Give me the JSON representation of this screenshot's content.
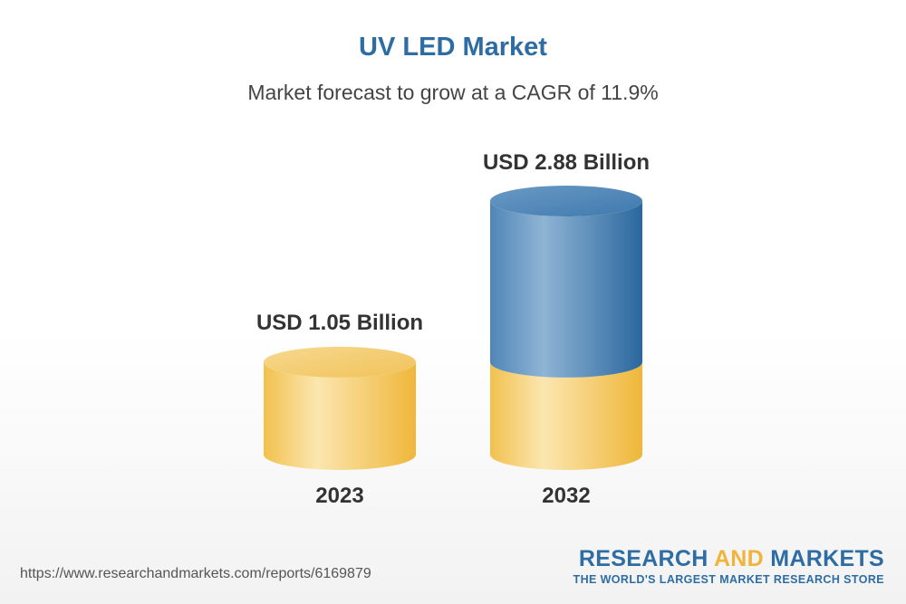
{
  "header": {
    "title": "UV LED Market",
    "subtitle": "Market forecast to grow at a CAGR of 11.9%"
  },
  "chart_data": {
    "type": "bar",
    "title": "UV LED Market",
    "subtitle": "Market forecast to grow at a CAGR of 11.9%",
    "categories": [
      "2023",
      "2032"
    ],
    "values": [
      1.05,
      2.88
    ],
    "data_labels": [
      "USD 1.05 Billion",
      "USD 2.88 Billion"
    ],
    "unit": "USD Billion",
    "xlabel": "",
    "ylabel": "",
    "ylim": [
      0,
      2.88
    ],
    "grid": false,
    "legend": "none",
    "colors": {
      "base": "#f2c14e",
      "base_light": "#fbe3a8",
      "growth": "#2f6ea5",
      "growth_light": "#8db2d3"
    }
  },
  "footer": {
    "source_url": "https://www.researchandmarkets.com/reports/6169879",
    "brand_part1": "RESEARCH",
    "brand_part2": "AND",
    "brand_part3": "MARKETS",
    "tagline": "THE WORLD'S LARGEST MARKET RESEARCH STORE"
  }
}
